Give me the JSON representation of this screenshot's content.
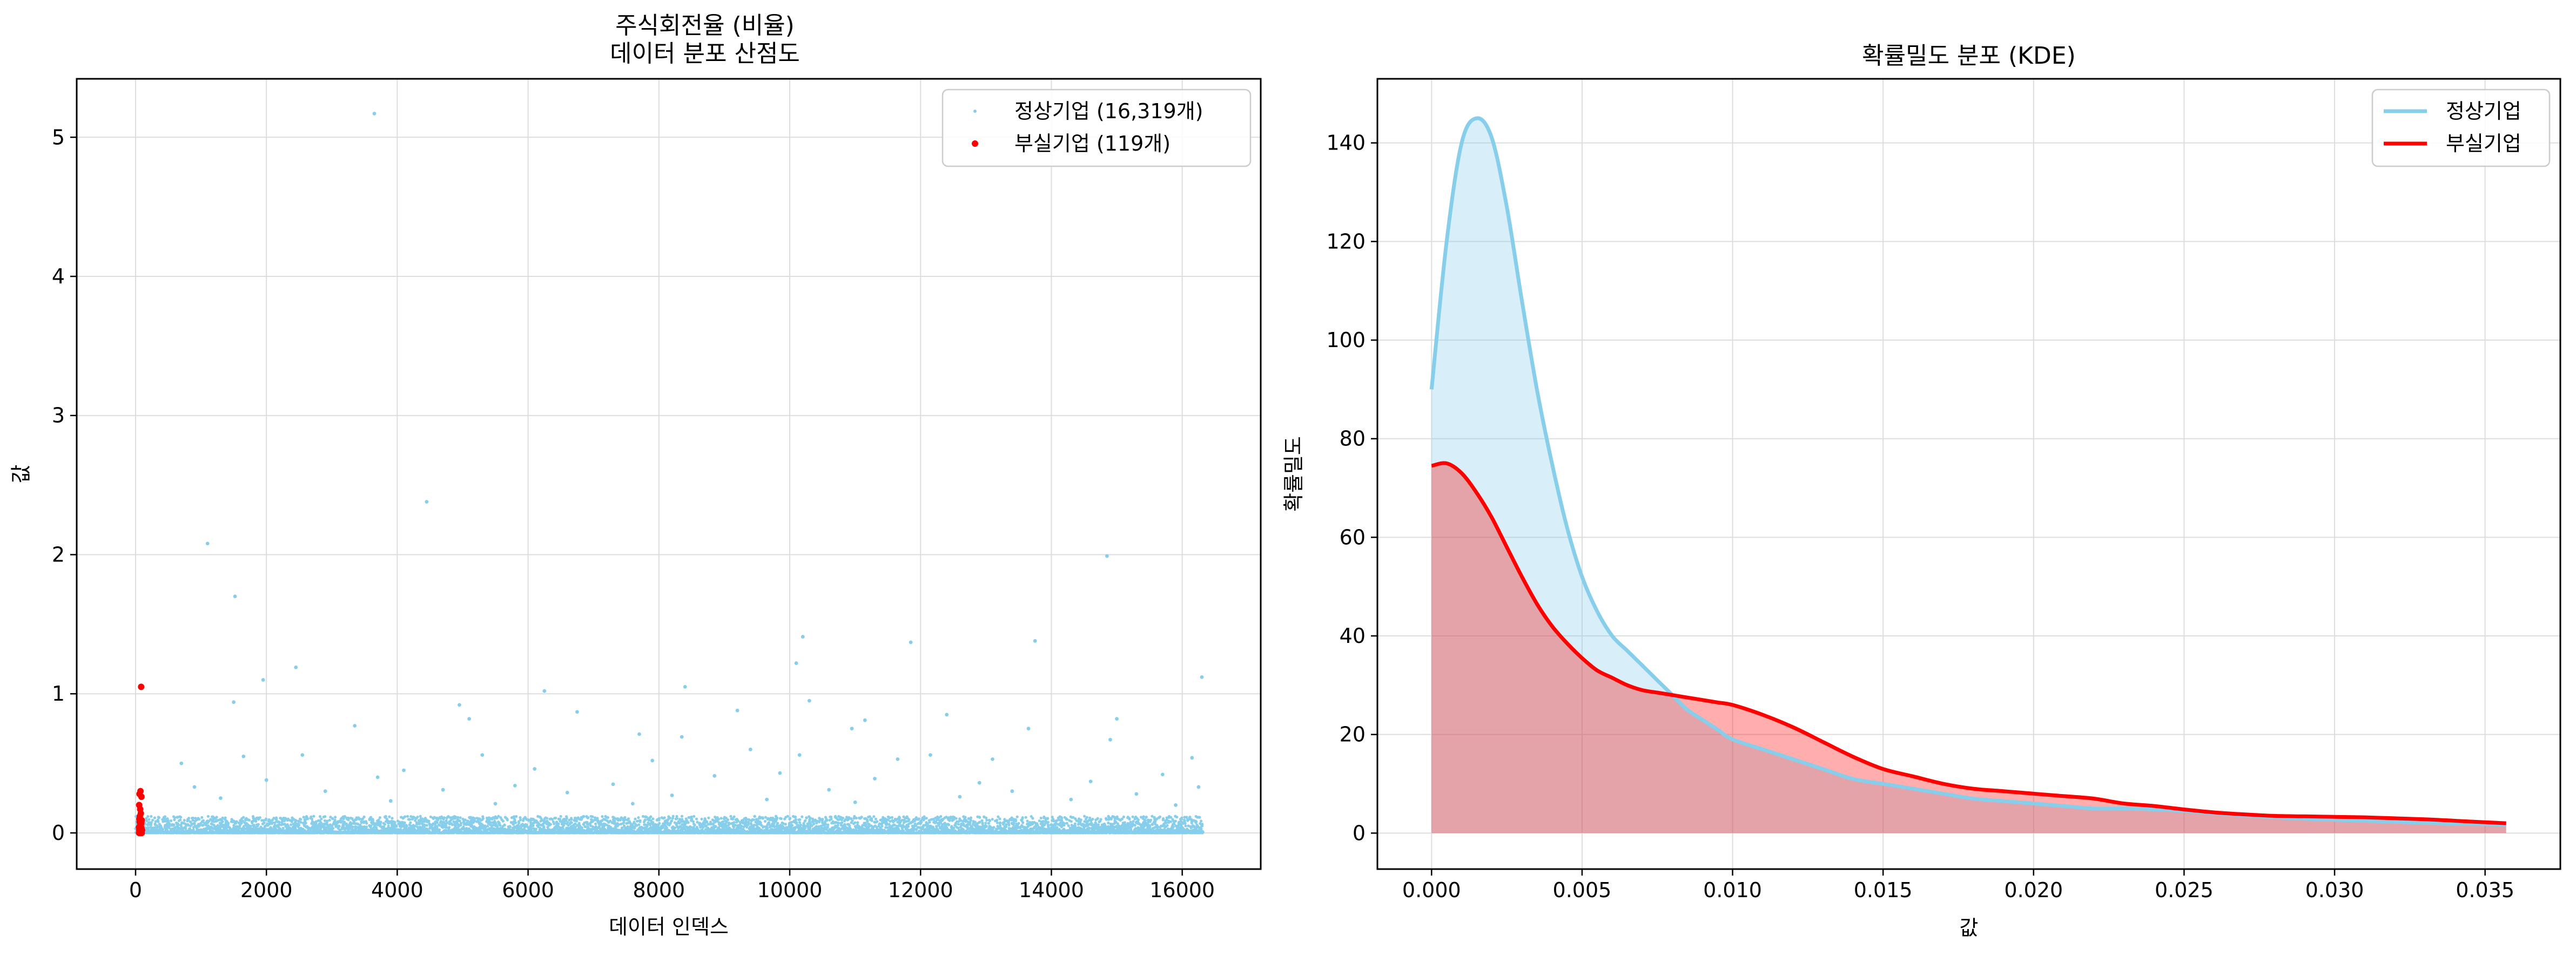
{
  "colors": {
    "normal": "#87CEEB",
    "bankrupt": "#FF0000",
    "normal_fill": "#87CEEB",
    "bankrupt_fill": "#FF0000",
    "grid": "#dddddd"
  },
  "chart_data": [
    {
      "type": "scatter",
      "title_line1": "주식회전율 (비율)",
      "title_line2": "데이터 분포 산점도",
      "xlabel": "데이터 인덱스",
      "ylabel": "값",
      "xlim": [
        -900,
        17200
      ],
      "ylim": [
        -0.26,
        5.42
      ],
      "xticks": [
        0,
        2000,
        4000,
        6000,
        8000,
        10000,
        12000,
        14000,
        16000
      ],
      "xtick_labels": [
        "0",
        "2000",
        "4000",
        "6000",
        "8000",
        "10000",
        "12000",
        "14000",
        "16000"
      ],
      "yticks": [
        0,
        1,
        2,
        3,
        4,
        5
      ],
      "ytick_labels": [
        "0",
        "1",
        "2",
        "3",
        "4",
        "5"
      ],
      "grid": true,
      "legend": "upper-right",
      "legend_entries": [
        "정상기업 (16,319개)",
        "부실기업 (119개)"
      ],
      "normal_outliers": [
        [
          3650,
          5.17
        ],
        [
          4450,
          2.38
        ],
        [
          1100,
          2.08
        ],
        [
          14850,
          1.99
        ],
        [
          1520,
          1.7
        ],
        [
          10200,
          1.41
        ],
        [
          11850,
          1.37
        ],
        [
          13750,
          1.38
        ],
        [
          1950,
          1.1
        ],
        [
          10100,
          1.22
        ],
        [
          2450,
          1.19
        ],
        [
          8400,
          1.05
        ],
        [
          6250,
          1.02
        ],
        [
          16300,
          1.12
        ],
        [
          10300,
          0.95
        ],
        [
          1500,
          0.94
        ],
        [
          4950,
          0.92
        ],
        [
          9200,
          0.88
        ],
        [
          6750,
          0.87
        ],
        [
          12400,
          0.85
        ],
        [
          5100,
          0.82
        ],
        [
          15000,
          0.82
        ],
        [
          11150,
          0.81
        ],
        [
          3350,
          0.77
        ],
        [
          10950,
          0.75
        ],
        [
          13650,
          0.75
        ],
        [
          7700,
          0.71
        ],
        [
          8350,
          0.69
        ],
        [
          14900,
          0.67
        ],
        [
          2550,
          0.56
        ],
        [
          9400,
          0.6
        ],
        [
          12150,
          0.56
        ],
        [
          1650,
          0.55
        ],
        [
          5300,
          0.56
        ],
        [
          10150,
          0.56
        ],
        [
          16150,
          0.54
        ],
        [
          700,
          0.5
        ],
        [
          11650,
          0.53
        ],
        [
          13100,
          0.53
        ],
        [
          7900,
          0.52
        ],
        [
          4100,
          0.45
        ],
        [
          6100,
          0.46
        ],
        [
          15700,
          0.42
        ],
        [
          9850,
          0.43
        ],
        [
          3700,
          0.4
        ],
        [
          8850,
          0.41
        ],
        [
          2000,
          0.38
        ],
        [
          11300,
          0.39
        ],
        [
          14600,
          0.37
        ],
        [
          12900,
          0.36
        ],
        [
          5800,
          0.34
        ],
        [
          7300,
          0.35
        ],
        [
          16250,
          0.33
        ],
        [
          900,
          0.33
        ],
        [
          10600,
          0.31
        ],
        [
          4700,
          0.31
        ],
        [
          13400,
          0.3
        ],
        [
          2900,
          0.3
        ],
        [
          6600,
          0.29
        ],
        [
          15300,
          0.28
        ],
        [
          8200,
          0.27
        ],
        [
          12600,
          0.26
        ],
        [
          1300,
          0.25
        ],
        [
          9650,
          0.24
        ],
        [
          14300,
          0.24
        ],
        [
          3900,
          0.23
        ],
        [
          11000,
          0.22
        ],
        [
          5500,
          0.21
        ],
        [
          7600,
          0.21
        ],
        [
          15900,
          0.2
        ]
      ],
      "normal_band_upper": 0.12,
      "normal_total": 16319,
      "bankrupt_points": [
        [
          85,
          1.05
        ],
        [
          75,
          0.3
        ],
        [
          60,
          0.28
        ],
        [
          90,
          0.26
        ],
        [
          55,
          0.2
        ],
        [
          70,
          0.17
        ],
        [
          80,
          0.14
        ],
        [
          65,
          0.12
        ],
        [
          58,
          0.1
        ],
        [
          95,
          0.09
        ],
        [
          62,
          0.08
        ],
        [
          88,
          0.07
        ],
        [
          72,
          0.06
        ],
        [
          68,
          0.05
        ],
        [
          78,
          0.05
        ],
        [
          52,
          0.04
        ],
        [
          84,
          0.04
        ],
        [
          92,
          0.03
        ],
        [
          66,
          0.03
        ],
        [
          74,
          0.02
        ],
        [
          56,
          0.02
        ],
        [
          98,
          0.02
        ],
        [
          64,
          0.01
        ],
        [
          82,
          0.01
        ],
        [
          70,
          0.01
        ],
        [
          60,
          0.0
        ],
        [
          76,
          0.0
        ],
        [
          86,
          0.0
        ],
        [
          54,
          0.0
        ],
        [
          94,
          0.0
        ]
      ]
    },
    {
      "type": "area",
      "title": "확률밀도 분포 (KDE)",
      "xlabel": "값",
      "ylabel": "확률밀도",
      "xlim": [
        -0.0018,
        0.0375
      ],
      "ylim": [
        -7.3,
        153
      ],
      "xticks": [
        0.0,
        0.005,
        0.01,
        0.015,
        0.02,
        0.025,
        0.03,
        0.035
      ],
      "xtick_labels": [
        "0.000",
        "0.005",
        "0.010",
        "0.015",
        "0.020",
        "0.025",
        "0.030",
        "0.035"
      ],
      "yticks": [
        0,
        20,
        40,
        60,
        80,
        100,
        120,
        140
      ],
      "ytick_labels": [
        "0",
        "20",
        "40",
        "60",
        "80",
        "100",
        "120",
        "140"
      ],
      "grid": true,
      "legend": "upper-right",
      "series": [
        {
          "name": "정상기업",
          "x": [
            0.0,
            0.0005,
            0.001,
            0.0015,
            0.002,
            0.0025,
            0.003,
            0.0035,
            0.004,
            0.0045,
            0.005,
            0.0055,
            0.006,
            0.0065,
            0.007,
            0.0075,
            0.008,
            0.0085,
            0.009,
            0.0095,
            0.01,
            0.011,
            0.012,
            0.013,
            0.014,
            0.015,
            0.016,
            0.017,
            0.018,
            0.019,
            0.02,
            0.021,
            0.022,
            0.023,
            0.024,
            0.025,
            0.026,
            0.027,
            0.028,
            0.029,
            0.03,
            0.031,
            0.032,
            0.033,
            0.034,
            0.035,
            0.0357
          ],
          "y": [
            90,
            120,
            140,
            145,
            141,
            127,
            108,
            90,
            75,
            62,
            52,
            45,
            40,
            37,
            34,
            31,
            28,
            25,
            23,
            21,
            19,
            17,
            15,
            13,
            11,
            10,
            9,
            8,
            7,
            6.5,
            6,
            5.5,
            5,
            5,
            4.8,
            4.5,
            4,
            3.6,
            3.2,
            2.9,
            2.7,
            2.5,
            2.3,
            2.1,
            1.9,
            1.8,
            1.7
          ]
        },
        {
          "name": "부실기업",
          "x": [
            0.0,
            0.0005,
            0.001,
            0.0015,
            0.002,
            0.0025,
            0.003,
            0.0035,
            0.004,
            0.0045,
            0.005,
            0.0055,
            0.006,
            0.0065,
            0.007,
            0.0075,
            0.008,
            0.0085,
            0.009,
            0.0095,
            0.01,
            0.011,
            0.012,
            0.013,
            0.014,
            0.015,
            0.016,
            0.017,
            0.018,
            0.019,
            0.02,
            0.021,
            0.022,
            0.023,
            0.024,
            0.025,
            0.026,
            0.027,
            0.028,
            0.029,
            0.03,
            0.031,
            0.032,
            0.033,
            0.034,
            0.035,
            0.0357
          ],
          "y": [
            74.5,
            75,
            73,
            69,
            64,
            58,
            52,
            46.5,
            42,
            38.5,
            35.5,
            33,
            31.5,
            30,
            29,
            28.5,
            28,
            27.5,
            27,
            26.5,
            26,
            24,
            21.5,
            18.5,
            15.5,
            13,
            11.5,
            10,
            9,
            8.5,
            8,
            7.5,
            7,
            6,
            5.5,
            4.8,
            4.2,
            3.8,
            3.5,
            3.4,
            3.3,
            3.2,
            3,
            2.8,
            2.5,
            2.2,
            2.0
          ]
        }
      ]
    }
  ]
}
